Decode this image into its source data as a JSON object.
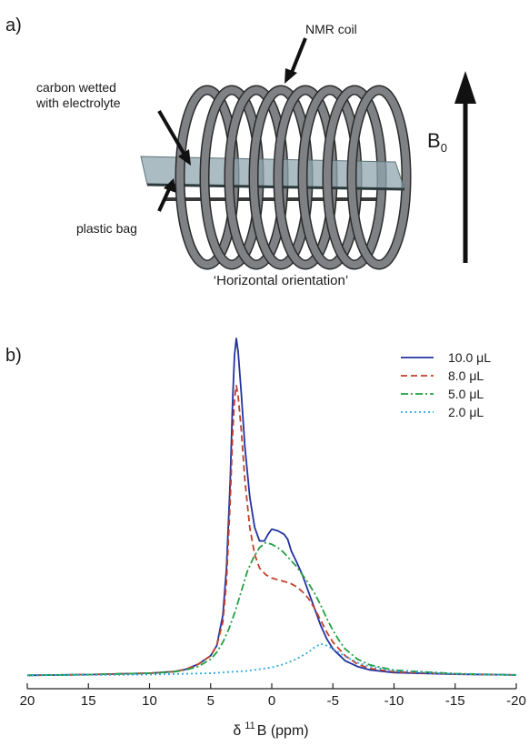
{
  "panel_a": {
    "label": "a)",
    "callouts": {
      "coil": "NMR coil",
      "carbon_line1": "carbon wetted",
      "carbon_line2": "with electrolyte",
      "bag": "plastic bag"
    },
    "field_label": "B",
    "field_subscript": "0",
    "caption": "‘Horizontal orientation’",
    "colors": {
      "coil": "#7f8184",
      "coil_edge": "#2b2b2b",
      "bag": "#8fa7ad"
    }
  },
  "panel_b": {
    "label": "b)"
  },
  "chart_data": {
    "type": "line",
    "xlabel_delta": "δ",
    "xlabel_sup": "11",
    "xlabel_rest": "B (ppm)",
    "xlim": [
      20,
      -20
    ],
    "x_reversed": true,
    "xticks": [
      20,
      15,
      10,
      5,
      0,
      -5,
      -10,
      -15,
      -20
    ],
    "ylim": [
      0,
      1.0
    ],
    "y_axis_shown": false,
    "grid": false,
    "legend_position": "top-right",
    "series": [
      {
        "name": "10.0 μL",
        "color": "#2233a0",
        "dash": "solid",
        "points": [
          [
            20,
            0.002
          ],
          [
            15,
            0.004
          ],
          [
            10,
            0.008
          ],
          [
            8,
            0.013
          ],
          [
            7,
            0.02
          ],
          [
            6,
            0.035
          ],
          [
            5,
            0.06
          ],
          [
            4.5,
            0.09
          ],
          [
            4,
            0.18
          ],
          [
            3.7,
            0.32
          ],
          [
            3.4,
            0.58
          ],
          [
            3.2,
            0.82
          ],
          [
            3.05,
            0.95
          ],
          [
            2.9,
            1.0
          ],
          [
            2.75,
            0.96
          ],
          [
            2.5,
            0.84
          ],
          [
            2.2,
            0.68
          ],
          [
            1.8,
            0.53
          ],
          [
            1.4,
            0.44
          ],
          [
            1,
            0.4
          ],
          [
            0.6,
            0.4
          ],
          [
            0.3,
            0.42
          ],
          [
            0,
            0.435
          ],
          [
            -0.5,
            0.43
          ],
          [
            -1,
            0.42
          ],
          [
            -1.3,
            0.405
          ],
          [
            -1.6,
            0.37
          ],
          [
            -2,
            0.34
          ],
          [
            -2.5,
            0.3
          ],
          [
            -3,
            0.25
          ],
          [
            -3.5,
            0.2
          ],
          [
            -4,
            0.15
          ],
          [
            -4.5,
            0.11
          ],
          [
            -5,
            0.08
          ],
          [
            -6,
            0.045
          ],
          [
            -7,
            0.028
          ],
          [
            -8,
            0.018
          ],
          [
            -10,
            0.01
          ],
          [
            -15,
            0.005
          ],
          [
            -20,
            0.003
          ]
        ]
      },
      {
        "name": "8.0 μL",
        "color": "#c0402a",
        "dash": "dashed",
        "points": [
          [
            20,
            0.002
          ],
          [
            15,
            0.004
          ],
          [
            10,
            0.008
          ],
          [
            8,
            0.013
          ],
          [
            7,
            0.02
          ],
          [
            6,
            0.035
          ],
          [
            5,
            0.06
          ],
          [
            4.5,
            0.09
          ],
          [
            4,
            0.16
          ],
          [
            3.7,
            0.28
          ],
          [
            3.4,
            0.52
          ],
          [
            3.2,
            0.72
          ],
          [
            3.05,
            0.82
          ],
          [
            2.9,
            0.86
          ],
          [
            2.75,
            0.83
          ],
          [
            2.5,
            0.73
          ],
          [
            2.2,
            0.58
          ],
          [
            1.8,
            0.44
          ],
          [
            1.4,
            0.36
          ],
          [
            1,
            0.32
          ],
          [
            0.5,
            0.3
          ],
          [
            0,
            0.29
          ],
          [
            -0.5,
            0.285
          ],
          [
            -1,
            0.28
          ],
          [
            -1.5,
            0.275
          ],
          [
            -2,
            0.265
          ],
          [
            -2.5,
            0.25
          ],
          [
            -3,
            0.23
          ],
          [
            -3.5,
            0.2
          ],
          [
            -4,
            0.165
          ],
          [
            -4.5,
            0.13
          ],
          [
            -5,
            0.1
          ],
          [
            -6,
            0.06
          ],
          [
            -7,
            0.035
          ],
          [
            -8,
            0.022
          ],
          [
            -10,
            0.012
          ],
          [
            -15,
            0.006
          ],
          [
            -20,
            0.003
          ]
        ]
      },
      {
        "name": "5.0 μL",
        "color": "#22a040",
        "dash": "dashdot",
        "points": [
          [
            20,
            0.002
          ],
          [
            15,
            0.004
          ],
          [
            10,
            0.008
          ],
          [
            8,
            0.012
          ],
          [
            7,
            0.018
          ],
          [
            6,
            0.028
          ],
          [
            5,
            0.05
          ],
          [
            4.5,
            0.07
          ],
          [
            4,
            0.1
          ],
          [
            3.5,
            0.14
          ],
          [
            3,
            0.19
          ],
          [
            2.5,
            0.25
          ],
          [
            2,
            0.31
          ],
          [
            1.5,
            0.35
          ],
          [
            1,
            0.38
          ],
          [
            0.5,
            0.395
          ],
          [
            0,
            0.39
          ],
          [
            -0.5,
            0.38
          ],
          [
            -1,
            0.365
          ],
          [
            -1.5,
            0.345
          ],
          [
            -2,
            0.325
          ],
          [
            -2.5,
            0.3
          ],
          [
            -3,
            0.275
          ],
          [
            -3.5,
            0.245
          ],
          [
            -4,
            0.21
          ],
          [
            -4.5,
            0.17
          ],
          [
            -5,
            0.135
          ],
          [
            -5.5,
            0.105
          ],
          [
            -6,
            0.08
          ],
          [
            -7,
            0.05
          ],
          [
            -8,
            0.033
          ],
          [
            -10,
            0.017
          ],
          [
            -15,
            0.007
          ],
          [
            -20,
            0.003
          ]
        ]
      },
      {
        "name": "2.0 μL",
        "color": "#2ea8e0",
        "dash": "dotted",
        "points": [
          [
            20,
            0.002
          ],
          [
            15,
            0.003
          ],
          [
            10,
            0.004
          ],
          [
            5,
            0.008
          ],
          [
            2,
            0.015
          ],
          [
            0,
            0.025
          ],
          [
            -1,
            0.035
          ],
          [
            -2,
            0.05
          ],
          [
            -3,
            0.07
          ],
          [
            -3.5,
            0.085
          ],
          [
            -4,
            0.095
          ],
          [
            -4.5,
            0.09
          ],
          [
            -5,
            0.08
          ],
          [
            -6,
            0.058
          ],
          [
            -7,
            0.04
          ],
          [
            -8,
            0.028
          ],
          [
            -10,
            0.015
          ],
          [
            -15,
            0.006
          ],
          [
            -20,
            0.003
          ]
        ]
      }
    ]
  }
}
